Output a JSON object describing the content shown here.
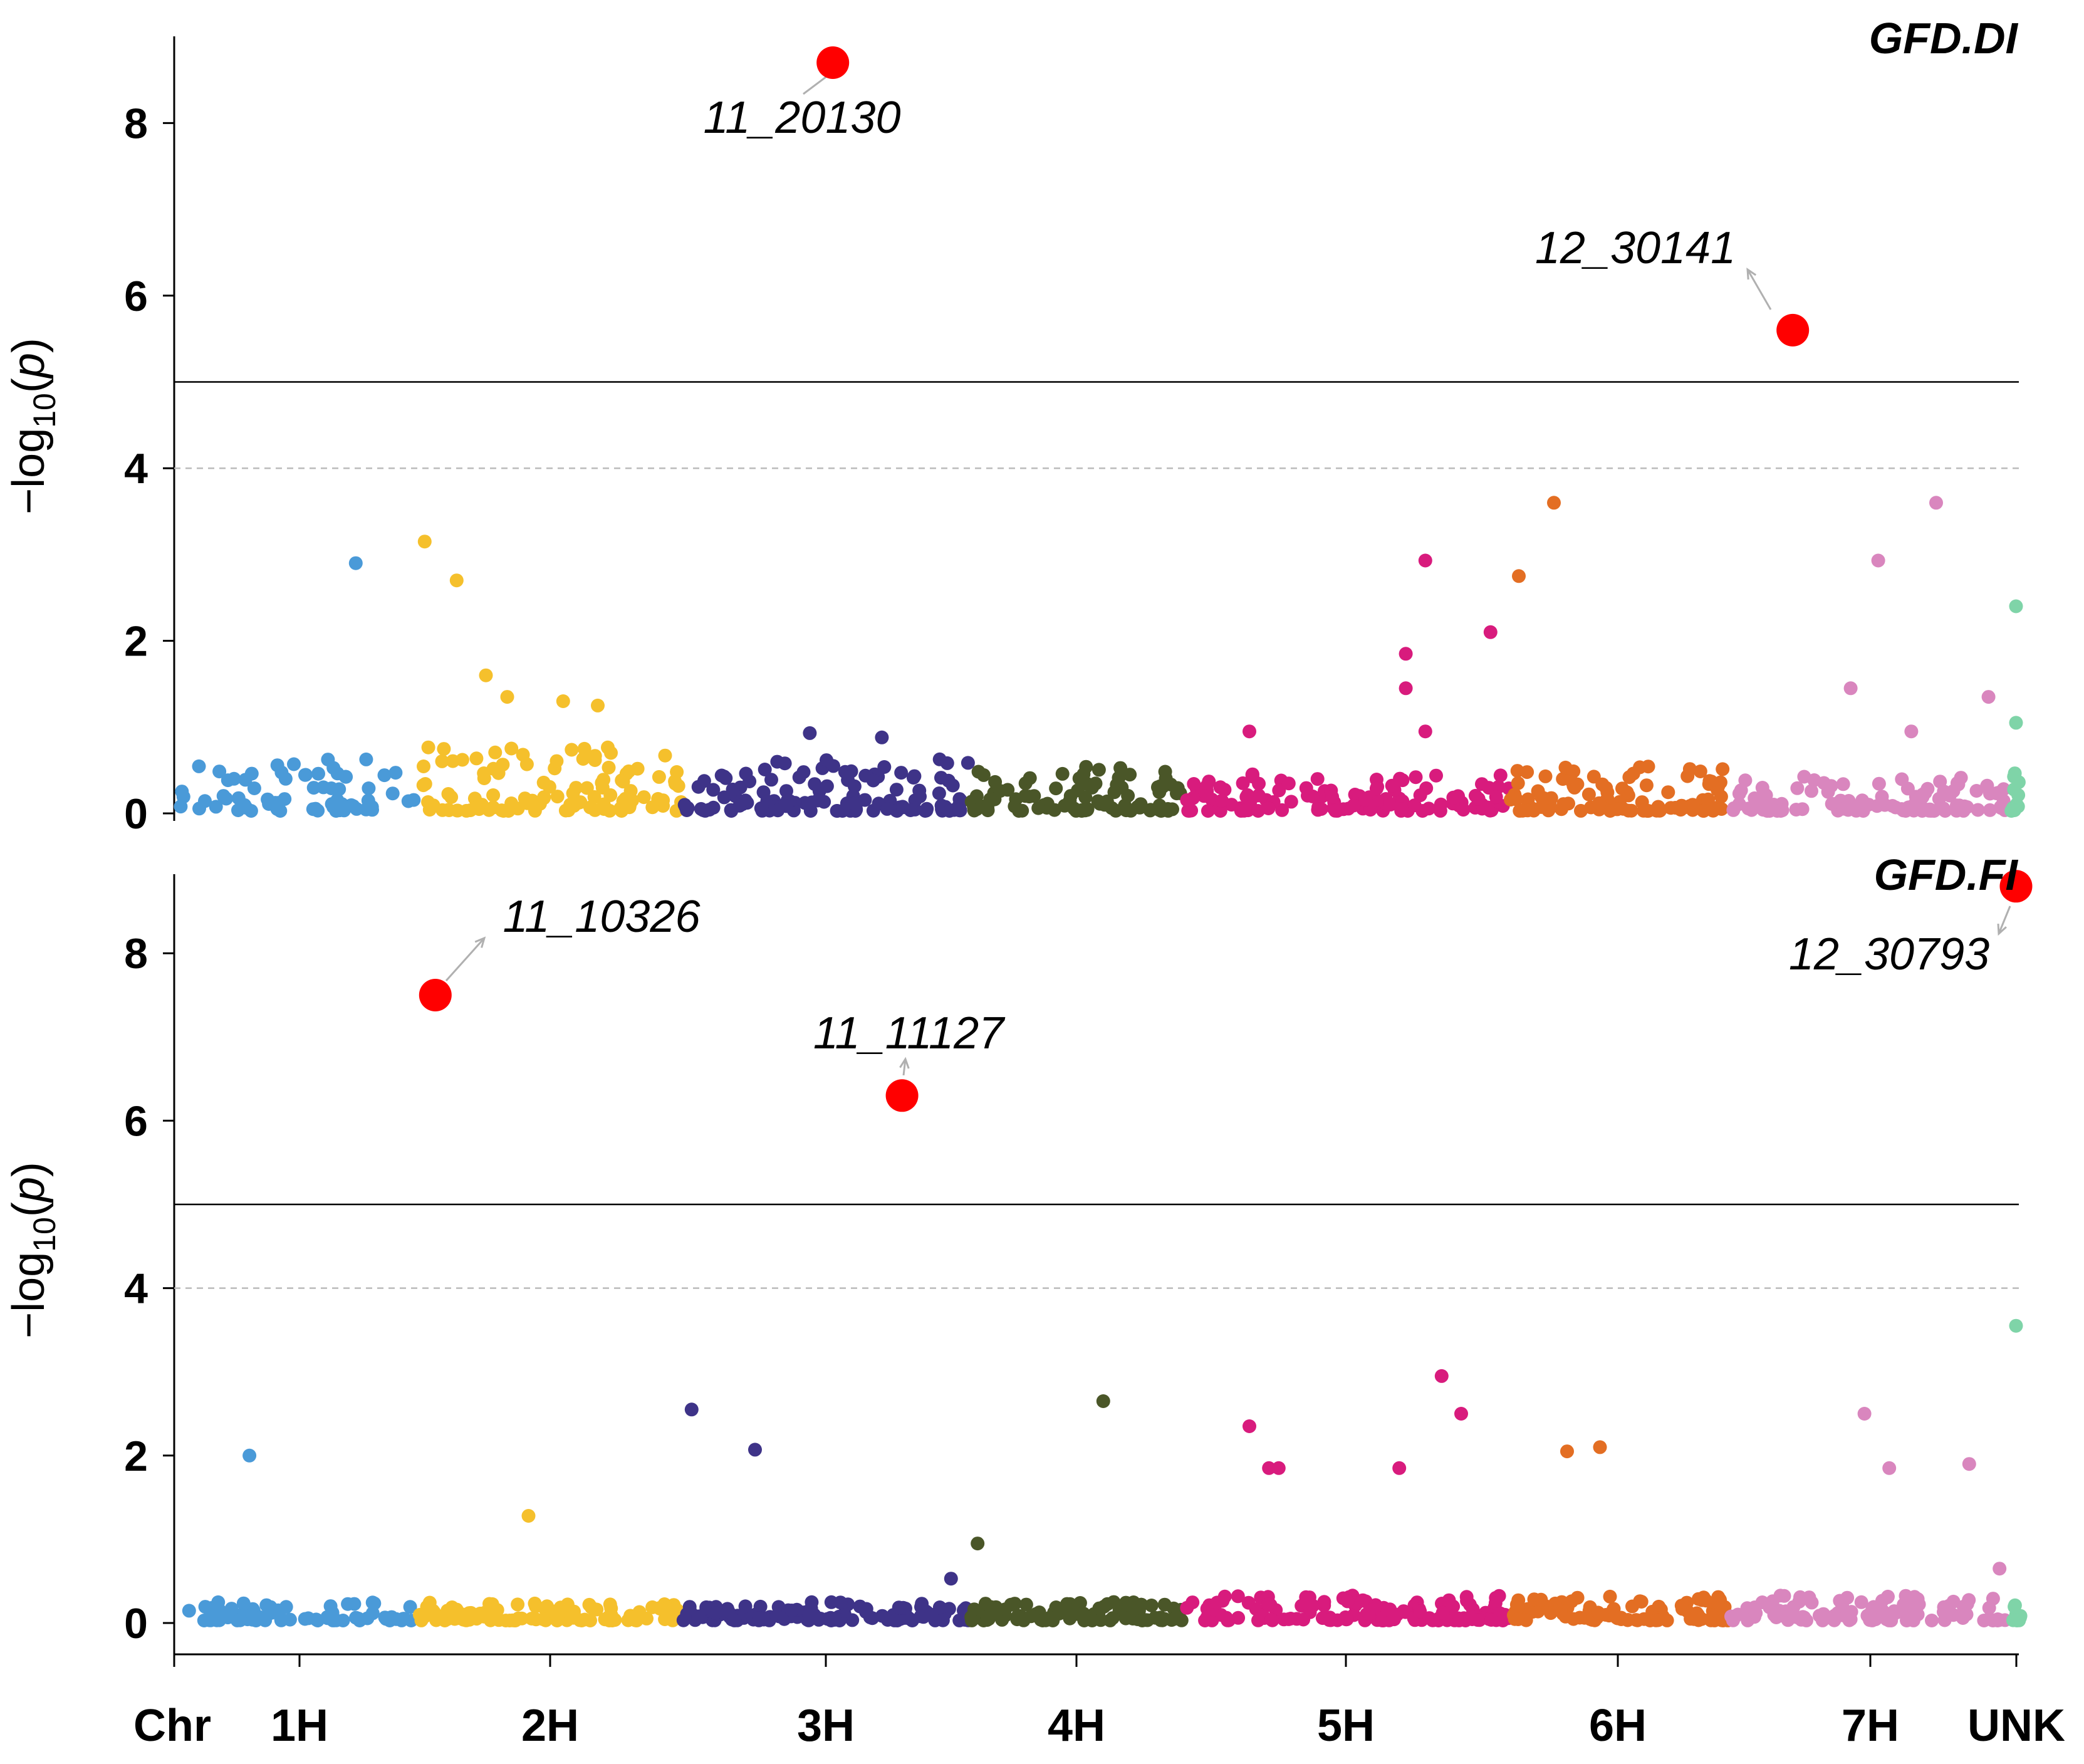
{
  "chart_data": [
    {
      "type": "scatter",
      "subtype": "manhattan",
      "title": "GFD.DI",
      "ylabel": "-log10(p)",
      "ylim": [
        0,
        9
      ],
      "yticks": [
        0,
        2,
        4,
        6,
        8
      ],
      "significance_threshold": 5,
      "suggestive_threshold": 4,
      "chromosomes": [
        "1H",
        "2H",
        "3H",
        "4H",
        "5H",
        "6H",
        "7H",
        "UNK"
      ],
      "highlighted": [
        {
          "marker": "11_20130",
          "chr": "3H",
          "pos": 0.52,
          "value": 8.7
        },
        {
          "marker": "12_30141",
          "chr": "7H",
          "pos": 0.23,
          "value": 5.6
        }
      ],
      "notable_points": [
        {
          "chr": "1H",
          "pos": 0.75,
          "value": 2.9
        },
        {
          "chr": "2H",
          "pos": 0.03,
          "value": 3.15
        },
        {
          "chr": "2H",
          "pos": 0.15,
          "value": 2.7
        },
        {
          "chr": "2H",
          "pos": 0.26,
          "value": 1.6
        },
        {
          "chr": "2H",
          "pos": 0.34,
          "value": 1.35
        },
        {
          "chr": "2H",
          "pos": 0.55,
          "value": 1.3
        },
        {
          "chr": "2H",
          "pos": 0.68,
          "value": 1.25
        },
        {
          "chr": "3H",
          "pos": 0.44,
          "value": 0.93
        },
        {
          "chr": "3H",
          "pos": 0.69,
          "value": 0.88
        },
        {
          "chr": "5H",
          "pos": 0.2,
          "value": 0.95
        },
        {
          "chr": "5H",
          "pos": 0.68,
          "value": 1.85
        },
        {
          "chr": "5H",
          "pos": 0.68,
          "value": 1.45
        },
        {
          "chr": "5H",
          "pos": 0.74,
          "value": 2.93
        },
        {
          "chr": "5H",
          "pos": 0.74,
          "value": 0.95
        },
        {
          "chr": "5H",
          "pos": 0.94,
          "value": 2.1
        },
        {
          "chr": "6H",
          "pos": 0.04,
          "value": 2.75
        },
        {
          "chr": "6H",
          "pos": 0.2,
          "value": 3.6
        },
        {
          "chr": "7H",
          "pos": 0.44,
          "value": 1.45
        },
        {
          "chr": "7H",
          "pos": 0.54,
          "value": 2.93
        },
        {
          "chr": "7H",
          "pos": 0.66,
          "value": 0.95
        },
        {
          "chr": "7H",
          "pos": 0.75,
          "value": 3.6
        },
        {
          "chr": "7H",
          "pos": 0.94,
          "value": 1.35
        },
        {
          "chr": "UNK",
          "pos": 0.5,
          "value": 2.4
        },
        {
          "chr": "UNK",
          "pos": 0.5,
          "value": 1.05
        }
      ]
    },
    {
      "type": "scatter",
      "subtype": "manhattan",
      "title": "GFD.FI",
      "ylabel": "-log10(p)",
      "ylim": [
        0,
        8.9
      ],
      "yticks": [
        0,
        2,
        4,
        6,
        8
      ],
      "significance_threshold": 5,
      "suggestive_threshold": 4,
      "chromosomes": [
        "1H",
        "2H",
        "3H",
        "4H",
        "5H",
        "6H",
        "7H",
        "UNK"
      ],
      "highlighted": [
        {
          "marker": "11_10326",
          "chr": "2H",
          "pos": 0.07,
          "value": 7.5
        },
        {
          "marker": "11_11127",
          "chr": "3H",
          "pos": 0.76,
          "value": 6.3
        },
        {
          "marker": "12_30793",
          "chr": "UNK",
          "pos": 0.5,
          "value": 8.8
        }
      ],
      "notable_points": [
        {
          "chr": "1H",
          "pos": 0.3,
          "value": 2.0
        },
        {
          "chr": "2H",
          "pos": 0.42,
          "value": 1.28
        },
        {
          "chr": "3H",
          "pos": 0.03,
          "value": 2.55
        },
        {
          "chr": "3H",
          "pos": 0.25,
          "value": 2.07
        },
        {
          "chr": "3H",
          "pos": 0.93,
          "value": 0.53
        },
        {
          "chr": "4H",
          "pos": 0.03,
          "value": 0.95
        },
        {
          "chr": "4H",
          "pos": 0.62,
          "value": 2.65
        },
        {
          "chr": "5H",
          "pos": 0.2,
          "value": 2.35
        },
        {
          "chr": "5H",
          "pos": 0.26,
          "value": 1.85
        },
        {
          "chr": "5H",
          "pos": 0.29,
          "value": 1.85
        },
        {
          "chr": "5H",
          "pos": 0.66,
          "value": 1.85
        },
        {
          "chr": "5H",
          "pos": 0.79,
          "value": 2.95
        },
        {
          "chr": "5H",
          "pos": 0.85,
          "value": 2.5
        },
        {
          "chr": "6H",
          "pos": 0.26,
          "value": 2.05
        },
        {
          "chr": "6H",
          "pos": 0.41,
          "value": 2.1
        },
        {
          "chr": "7H",
          "pos": 0.49,
          "value": 2.5
        },
        {
          "chr": "7H",
          "pos": 0.58,
          "value": 1.85
        },
        {
          "chr": "7H",
          "pos": 0.87,
          "value": 1.9
        },
        {
          "chr": "7H",
          "pos": 0.98,
          "value": 0.65
        },
        {
          "chr": "UNK",
          "pos": 0.5,
          "value": 3.55
        }
      ]
    }
  ],
  "xaxis": {
    "labels": [
      "Chr",
      "1H",
      "2H",
      "3H",
      "4H",
      "5H",
      "6H",
      "7H",
      "UNK"
    ]
  },
  "colors": {
    "1H": "#4a9ad8",
    "2H": "#f5c02c",
    "3H": "#3e3388",
    "4H": "#4a5628",
    "5H": "#d81b7d",
    "6H": "#e36e23",
    "7H": "#d986be",
    "UNK": "#7fd4a8",
    "highlight": "#ff0000"
  }
}
